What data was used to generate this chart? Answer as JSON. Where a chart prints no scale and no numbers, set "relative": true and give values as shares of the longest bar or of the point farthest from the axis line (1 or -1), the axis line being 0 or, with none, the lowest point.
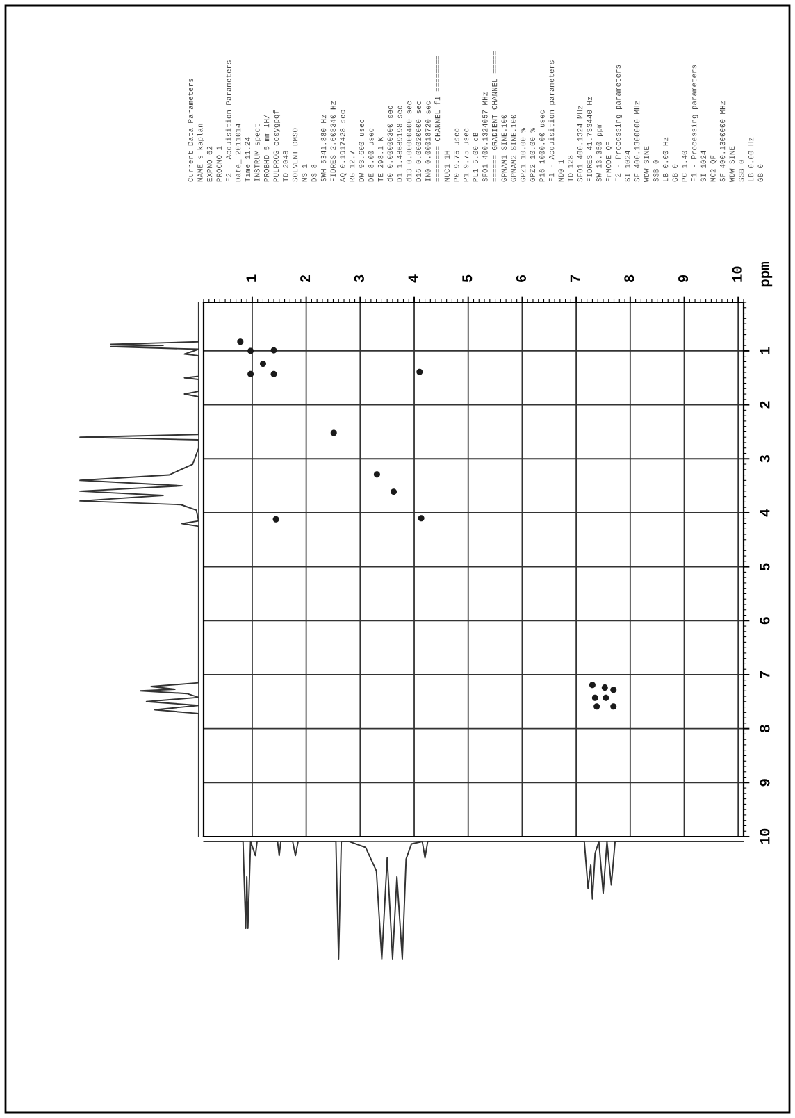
{
  "chart_data": [
    {
      "type": "scatter",
      "ylabel": "ppm",
      "color": "#1a1a1a",
      "marker": "circle",
      "grid": true,
      "xlim": [
        0.1,
        10.1
      ],
      "ylim": [
        10,
        0.1
      ],
      "xticks": [
        1,
        2,
        3,
        4,
        5,
        6,
        7,
        8,
        9,
        10
      ],
      "yticks": [
        1,
        2,
        3,
        4,
        5,
        6,
        7,
        8,
        9,
        10
      ],
      "x": [
        0.78,
        0.97,
        1.4,
        0.97,
        1.4,
        1.2,
        4.1,
        2.51,
        3.31,
        3.62,
        1.44,
        4.13,
        7.3,
        7.53,
        7.69,
        7.35,
        7.55,
        7.38,
        7.69
      ],
      "values": [
        0.83,
        1.0,
        0.99,
        1.43,
        1.43,
        1.24,
        1.39,
        2.52,
        3.29,
        3.61,
        4.12,
        4.1,
        7.19,
        7.24,
        7.28,
        7.43,
        7.43,
        7.59,
        7.59
      ],
      "annotations": [
        "Current Data Parameters",
        "NAME s kaplan",
        "EXPNO 62",
        "PROCNO 1",
        "F2 - Acquisition Parameters",
        "Date_ 2011014",
        "Time 11.24",
        "INSTRUM spect",
        "PROBHD 5 mm 1H/",
        "PULPROG cosygpqf",
        "TD 2048",
        "SOLVENT DMSO",
        "NS 1",
        "DS 8",
        "SWH 5341.880 Hz",
        "FIDRES 2.608340 Hz",
        "AQ 0.1917428 sec",
        "RG 12.7",
        "DW 93.600 usec",
        "DE 8.00 usec",
        "TE 298.1 K",
        "d0 0.00000300 sec",
        "D1 1.48689198 sec",
        "d13 0.00000400 sec",
        "D16 0.00020000 sec",
        "IN0 0.00018720 sec",
        "======== CHANNEL f1 ========",
        "NUC1 1H",
        "P0 9.75 usec",
        "P1 9.75 usec",
        "PL1 5.00 dB",
        "SFO1 400.1324057 MHz",
        "====== GRADIENT CHANNEL =====",
        "GPNAM1 SINE.100",
        "GPNAM2 SINE.100",
        "GPZ1 10.00 %",
        "GPZ2 10.00 %",
        "P16 1000.00 usec",
        "F1 - Acquisition parameters",
        "ND0 1",
        "TD 128",
        "SFO1 400.1324 MHz",
        "FIDRES 41.733440 Hz",
        "SW 13.350 ppm",
        "FnMODE QF",
        "F2 - Processing parameters",
        "SI 1024",
        "SF 400.1300000 MHz",
        "WDW SINE",
        "SSB 0",
        "LB 0.00 Hz",
        "GB 0",
        "PC 1.40",
        "F1 - Processing parameters",
        "SI 1024",
        "MC2 QF",
        "SF 400.1300000 MHz",
        "WDW SINE",
        "SSB 0",
        "LB 0.00 Hz",
        "GB 0"
      ]
    },
    {
      "type": "line",
      "relative": true,
      "tick_labels": false,
      "color": "#333333",
      "xlim": [
        0.1,
        10.1
      ],
      "xticks": [
        1,
        2,
        3,
        4,
        5,
        6,
        7,
        8,
        9,
        10
      ],
      "x": [
        0.1,
        0.83,
        0.88,
        0.9,
        0.92,
        0.97,
        1.03,
        1.06,
        1.09,
        1.2,
        1.47,
        1.5,
        1.53,
        1.75,
        1.8,
        1.85,
        2.4,
        2.55,
        2.6,
        2.65,
        2.8,
        3.1,
        3.3,
        3.4,
        3.5,
        3.6,
        3.68,
        3.78,
        3.85,
        3.95,
        4.15,
        4.2,
        4.25,
        7.15,
        7.22,
        7.27,
        7.3,
        7.35,
        7.42,
        7.5,
        7.57,
        7.65,
        7.72,
        10.1
      ],
      "values": [
        0,
        0,
        -0.74,
        -0.3,
        -0.74,
        0,
        -0.08,
        -0.12,
        0,
        0,
        0,
        -0.12,
        0,
        0,
        -0.12,
        0,
        0,
        0,
        -1,
        0,
        0,
        -0.05,
        -0.25,
        -1,
        -0.14,
        -1,
        -0.3,
        -1,
        -0.15,
        -0.02,
        0,
        -0.14,
        0,
        0,
        -0.4,
        -0.2,
        -0.49,
        -0.1,
        0,
        -0.44,
        0,
        -0.37,
        0,
        0
      ]
    },
    {
      "type": "line",
      "orientation": "horizontal",
      "relative": true,
      "tick_labels": false,
      "color": "#333333",
      "ylim": [
        10,
        0.1
      ],
      "yticks": [
        1,
        2,
        3,
        4,
        5,
        6,
        7,
        8,
        9,
        10
      ],
      "x": [
        0.1,
        0.83,
        0.88,
        0.9,
        0.92,
        0.97,
        1.03,
        1.06,
        1.09,
        1.2,
        1.47,
        1.5,
        1.53,
        1.75,
        1.8,
        1.85,
        2.4,
        2.55,
        2.6,
        2.65,
        2.8,
        3.1,
        3.3,
        3.4,
        3.5,
        3.6,
        3.68,
        3.78,
        3.85,
        3.95,
        4.15,
        4.2,
        4.25,
        7.15,
        7.22,
        7.27,
        7.3,
        7.35,
        7.42,
        7.5,
        7.57,
        7.65,
        7.72,
        10.1
      ],
      "values": [
        0,
        0,
        -0.74,
        -0.3,
        -0.74,
        0,
        -0.08,
        -0.12,
        0,
        0,
        0,
        -0.12,
        0,
        0,
        -0.12,
        0,
        0,
        0,
        -1,
        0,
        0,
        -0.05,
        -0.25,
        -1,
        -0.14,
        -1,
        -0.3,
        -1,
        -0.15,
        -0.02,
        0,
        -0.14,
        0,
        0,
        -0.4,
        -0.2,
        -0.49,
        -0.1,
        0,
        -0.44,
        0,
        -0.37,
        0,
        0
      ]
    }
  ]
}
